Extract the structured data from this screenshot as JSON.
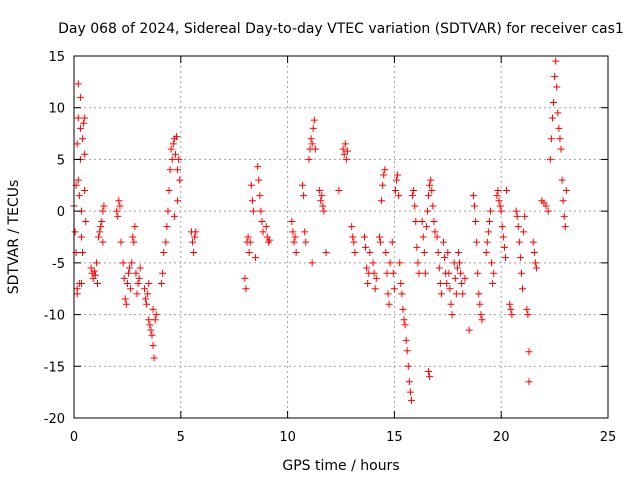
{
  "chart_data": {
    "type": "scatter",
    "title": "Day 068 of 2024, Sidereal Day-to-day VTEC variation (SDTVAR) for receiver cas1",
    "xlabel": "GPS time / hours",
    "ylabel": "SDTVAR / TECUs",
    "xlim": [
      0,
      25
    ],
    "ylim": [
      -20,
      15
    ],
    "xticks": [
      0,
      5,
      10,
      15,
      20,
      25
    ],
    "xtick_labels": [
      "0",
      "5",
      "10",
      "15",
      "20",
      "25"
    ],
    "yticks": [
      -20,
      -15,
      -10,
      -5,
      0,
      5,
      10,
      15
    ],
    "ytick_labels": [
      "-20",
      "-15",
      "-10",
      "-5",
      "0",
      "5",
      "10",
      "15"
    ],
    "grid": true,
    "marker": "+",
    "color": "#ff0000",
    "series": [
      {
        "name": "SDTVAR",
        "points": [
          [
            0.0,
            0.5
          ],
          [
            0.05,
            -2.0
          ],
          [
            0.1,
            -4.0
          ],
          [
            0.1,
            2.5
          ],
          [
            0.15,
            6.5
          ],
          [
            0.15,
            -7.5
          ],
          [
            0.15,
            -8.0
          ],
          [
            0.2,
            12.3
          ],
          [
            0.2,
            9.0
          ],
          [
            0.2,
            3.0
          ],
          [
            0.25,
            1.5
          ],
          [
            0.25,
            -7.0
          ],
          [
            0.3,
            11.0
          ],
          [
            0.3,
            8.0
          ],
          [
            0.3,
            5.0
          ],
          [
            0.35,
            0.0
          ],
          [
            0.35,
            -2.5
          ],
          [
            0.35,
            -7.0
          ],
          [
            0.4,
            -4.0
          ],
          [
            0.4,
            7.0
          ],
          [
            0.45,
            8.5
          ],
          [
            0.5,
            9.0
          ],
          [
            0.5,
            5.5
          ],
          [
            0.5,
            2.0
          ],
          [
            0.55,
            -1.0
          ],
          [
            0.8,
            -5.5
          ],
          [
            0.85,
            -6.0
          ],
          [
            0.9,
            -6.5
          ],
          [
            0.95,
            -5.8
          ],
          [
            1.0,
            -6.2
          ],
          [
            1.05,
            -5.0
          ],
          [
            1.1,
            -7.0
          ],
          [
            1.15,
            -2.5
          ],
          [
            1.2,
            -2.0
          ],
          [
            1.25,
            -1.5
          ],
          [
            1.3,
            -1.0
          ],
          [
            1.35,
            0.0
          ],
          [
            1.4,
            0.5
          ],
          [
            1.35,
            -3.0
          ],
          [
            2.0,
            0.0
          ],
          [
            2.05,
            -0.5
          ],
          [
            2.1,
            1.0
          ],
          [
            2.15,
            0.5
          ],
          [
            2.2,
            -3.0
          ],
          [
            2.3,
            -5.0
          ],
          [
            2.35,
            -6.5
          ],
          [
            2.4,
            -8.5
          ],
          [
            2.45,
            -9.0
          ],
          [
            2.5,
            -7.0
          ],
          [
            2.55,
            -6.0
          ],
          [
            2.6,
            -5.5
          ],
          [
            2.65,
            -7.5
          ],
          [
            2.7,
            -5.0
          ],
          [
            2.75,
            -2.5
          ],
          [
            2.8,
            -3.0
          ],
          [
            2.85,
            -1.5
          ],
          [
            2.9,
            -6.0
          ],
          [
            2.95,
            -8.0
          ],
          [
            3.0,
            -7.0
          ],
          [
            3.05,
            -6.5
          ],
          [
            3.1,
            -5.5
          ],
          [
            3.3,
            -7.5
          ],
          [
            3.35,
            -8.5
          ],
          [
            3.4,
            -9.0
          ],
          [
            3.45,
            -8.0
          ],
          [
            3.5,
            -7.0
          ],
          [
            3.5,
            -10.5
          ],
          [
            3.55,
            -11.0
          ],
          [
            3.6,
            -11.5
          ],
          [
            3.65,
            -12.0
          ],
          [
            3.7,
            -13.0
          ],
          [
            3.75,
            -14.2
          ],
          [
            3.8,
            -10.5
          ],
          [
            3.85,
            -10.0
          ],
          [
            3.7,
            -9.5
          ],
          [
            4.1,
            -7.0
          ],
          [
            4.15,
            -6.0
          ],
          [
            4.2,
            -4.0
          ],
          [
            4.3,
            -3.0
          ],
          [
            4.35,
            -1.5
          ],
          [
            4.4,
            0.0
          ],
          [
            4.45,
            2.0
          ],
          [
            4.5,
            4.0
          ],
          [
            4.55,
            6.0
          ],
          [
            4.6,
            5.0
          ],
          [
            4.65,
            6.5
          ],
          [
            4.7,
            7.0
          ],
          [
            4.75,
            5.5
          ],
          [
            4.8,
            7.2
          ],
          [
            4.85,
            4.0
          ],
          [
            4.9,
            5.0
          ],
          [
            4.95,
            3.0
          ],
          [
            4.85,
            1.0
          ],
          [
            4.7,
            -0.5
          ],
          [
            5.5,
            -2.0
          ],
          [
            5.55,
            -3.0
          ],
          [
            5.6,
            -4.0
          ],
          [
            5.65,
            -2.5
          ],
          [
            5.7,
            -2.0
          ],
          [
            8.0,
            -6.5
          ],
          [
            8.05,
            -7.5
          ],
          [
            8.1,
            -3.0
          ],
          [
            8.15,
            -2.5
          ],
          [
            8.2,
            -4.0
          ],
          [
            8.25,
            -3.0
          ],
          [
            8.3,
            2.5
          ],
          [
            8.35,
            1.0
          ],
          [
            8.4,
            0.0
          ],
          [
            8.5,
            -4.5
          ],
          [
            8.6,
            4.3
          ],
          [
            8.65,
            3.0
          ],
          [
            8.7,
            1.5
          ],
          [
            8.75,
            0.0
          ],
          [
            8.8,
            -1.0
          ],
          [
            8.85,
            -2.0
          ],
          [
            9.0,
            -1.5
          ],
          [
            9.05,
            -2.5
          ],
          [
            9.1,
            -3.0
          ],
          [
            9.15,
            -2.8
          ],
          [
            10.2,
            -1.0
          ],
          [
            10.25,
            -2.0
          ],
          [
            10.3,
            -3.0
          ],
          [
            10.35,
            -2.5
          ],
          [
            10.4,
            -4.0
          ],
          [
            10.7,
            2.5
          ],
          [
            10.75,
            1.5
          ],
          [
            10.8,
            -2.0
          ],
          [
            10.85,
            -3.0
          ],
          [
            11.0,
            5.0
          ],
          [
            11.05,
            6.0
          ],
          [
            11.1,
            7.0
          ],
          [
            11.15,
            6.5
          ],
          [
            11.2,
            8.0
          ],
          [
            11.25,
            8.8
          ],
          [
            11.3,
            6.0
          ],
          [
            11.15,
            -5.0
          ],
          [
            11.5,
            2.0
          ],
          [
            11.55,
            1.0
          ],
          [
            11.6,
            1.5
          ],
          [
            11.65,
            0.5
          ],
          [
            11.7,
            0.0
          ],
          [
            11.8,
            -4.0
          ],
          [
            12.4,
            2.0
          ],
          [
            12.6,
            6.0
          ],
          [
            12.65,
            5.5
          ],
          [
            12.7,
            6.5
          ],
          [
            12.75,
            5.0
          ],
          [
            12.8,
            5.8
          ],
          [
            13.0,
            -1.5
          ],
          [
            13.05,
            -2.5
          ],
          [
            13.1,
            -3.0
          ],
          [
            13.15,
            -4.0
          ],
          [
            13.6,
            -2.5
          ],
          [
            13.65,
            -3.5
          ],
          [
            13.7,
            -5.5
          ],
          [
            13.75,
            -7.0
          ],
          [
            13.8,
            -6.0
          ],
          [
            13.85,
            -4.0
          ],
          [
            14.0,
            -5.0
          ],
          [
            14.05,
            -6.0
          ],
          [
            14.1,
            -7.5
          ],
          [
            14.15,
            -6.5
          ],
          [
            14.3,
            -2.5
          ],
          [
            14.35,
            -3.0
          ],
          [
            14.4,
            1.0
          ],
          [
            14.45,
            2.5
          ],
          [
            14.5,
            3.5
          ],
          [
            14.55,
            4.0
          ],
          [
            14.6,
            -4.0
          ],
          [
            14.65,
            -6.0
          ],
          [
            14.7,
            -8.0
          ],
          [
            14.75,
            -9.0
          ],
          [
            14.8,
            -5.0
          ],
          [
            14.9,
            -3.0
          ],
          [
            14.95,
            -6.0
          ],
          [
            15.0,
            -7.5
          ],
          [
            15.05,
            2.0
          ],
          [
            15.1,
            3.0
          ],
          [
            15.15,
            3.5
          ],
          [
            15.2,
            1.5
          ],
          [
            15.25,
            -5.0
          ],
          [
            15.3,
            -7.0
          ],
          [
            15.35,
            -8.0
          ],
          [
            15.4,
            -9.5
          ],
          [
            15.45,
            -10.5
          ],
          [
            15.5,
            -11.0
          ],
          [
            15.55,
            -12.5
          ],
          [
            15.6,
            -13.5
          ],
          [
            15.65,
            -15.0
          ],
          [
            15.7,
            -16.5
          ],
          [
            15.75,
            -17.5
          ],
          [
            15.8,
            -18.3
          ],
          [
            15.85,
            1.5
          ],
          [
            15.9,
            2.0
          ],
          [
            15.95,
            0.5
          ],
          [
            16.0,
            -1.0
          ],
          [
            16.05,
            -3.5
          ],
          [
            16.1,
            -5.0
          ],
          [
            16.15,
            -6.0
          ],
          [
            16.3,
            -1.0
          ],
          [
            16.35,
            -2.5
          ],
          [
            16.4,
            -4.0
          ],
          [
            16.45,
            -6.0
          ],
          [
            16.5,
            -1.5
          ],
          [
            16.55,
            0.0
          ],
          [
            16.6,
            1.5
          ],
          [
            16.65,
            2.5
          ],
          [
            16.7,
            3.0
          ],
          [
            16.75,
            2.0
          ],
          [
            16.8,
            0.5
          ],
          [
            16.85,
            -1.0
          ],
          [
            16.9,
            -2.0
          ],
          [
            16.6,
            -15.5
          ],
          [
            16.65,
            -16.0
          ],
          [
            17.0,
            -2.5
          ],
          [
            17.05,
            -4.0
          ],
          [
            17.1,
            -5.5
          ],
          [
            17.15,
            -7.0
          ],
          [
            17.2,
            -8.0
          ],
          [
            17.3,
            -3.0
          ],
          [
            17.35,
            -4.5
          ],
          [
            17.4,
            -6.0
          ],
          [
            17.45,
            -7.0
          ],
          [
            17.5,
            -4.0
          ],
          [
            17.55,
            -6.0
          ],
          [
            17.6,
            -7.5
          ],
          [
            17.65,
            -9.0
          ],
          [
            17.7,
            -10.0
          ],
          [
            17.8,
            -5.0
          ],
          [
            17.85,
            -6.5
          ],
          [
            17.9,
            -8.0
          ],
          [
            17.95,
            -5.5
          ],
          [
            18.0,
            -4.0
          ],
          [
            18.05,
            -5.0
          ],
          [
            18.1,
            -6.0
          ],
          [
            18.15,
            -7.0
          ],
          [
            18.2,
            -8.0
          ],
          [
            18.3,
            -6.5
          ],
          [
            18.5,
            -11.5
          ],
          [
            18.7,
            1.5
          ],
          [
            18.75,
            0.5
          ],
          [
            18.8,
            -1.0
          ],
          [
            18.85,
            -3.0
          ],
          [
            18.9,
            -6.0
          ],
          [
            18.95,
            -8.0
          ],
          [
            19.0,
            -9.0
          ],
          [
            19.05,
            -10.0
          ],
          [
            19.1,
            -10.5
          ],
          [
            19.3,
            -4.0
          ],
          [
            19.35,
            -3.0
          ],
          [
            19.4,
            -2.0
          ],
          [
            19.45,
            -1.0
          ],
          [
            19.5,
            0.0
          ],
          [
            19.55,
            -5.0
          ],
          [
            19.6,
            -7.0
          ],
          [
            19.65,
            -6.0
          ],
          [
            19.8,
            1.5
          ],
          [
            19.85,
            2.0
          ],
          [
            19.9,
            1.0
          ],
          [
            19.95,
            0.5
          ],
          [
            20.0,
            0.0
          ],
          [
            20.05,
            -1.5
          ],
          [
            20.1,
            -2.5
          ],
          [
            20.15,
            -3.5
          ],
          [
            20.2,
            -4.5
          ],
          [
            20.25,
            2.0
          ],
          [
            20.4,
            -9.0
          ],
          [
            20.45,
            -9.5
          ],
          [
            20.5,
            -10.0
          ],
          [
            20.7,
            0.0
          ],
          [
            20.75,
            -0.5
          ],
          [
            20.8,
            -1.5
          ],
          [
            20.85,
            -3.0
          ],
          [
            20.9,
            -4.5
          ],
          [
            20.95,
            -6.0
          ],
          [
            21.0,
            -7.5
          ],
          [
            21.05,
            -2.0
          ],
          [
            21.1,
            -0.5
          ],
          [
            21.2,
            -9.5
          ],
          [
            21.25,
            -10.0
          ],
          [
            21.3,
            -13.6
          ],
          [
            21.3,
            -16.5
          ],
          [
            21.5,
            -3.0
          ],
          [
            21.55,
            -4.0
          ],
          [
            21.6,
            -5.0
          ],
          [
            21.65,
            -5.5
          ],
          [
            21.9,
            1.0
          ],
          [
            22.0,
            0.8
          ],
          [
            22.1,
            0.5
          ],
          [
            22.2,
            0.0
          ],
          [
            22.3,
            5.0
          ],
          [
            22.35,
            7.0
          ],
          [
            22.4,
            9.0
          ],
          [
            22.45,
            10.5
          ],
          [
            22.5,
            13.0
          ],
          [
            22.55,
            14.5
          ],
          [
            22.6,
            12.0
          ],
          [
            22.65,
            9.5
          ],
          [
            22.7,
            8.0
          ],
          [
            22.75,
            7.0
          ],
          [
            22.8,
            6.0
          ],
          [
            22.85,
            3.0
          ],
          [
            22.9,
            1.0
          ],
          [
            22.95,
            -0.5
          ],
          [
            23.0,
            -1.5
          ],
          [
            23.05,
            2.0
          ]
        ]
      }
    ]
  }
}
